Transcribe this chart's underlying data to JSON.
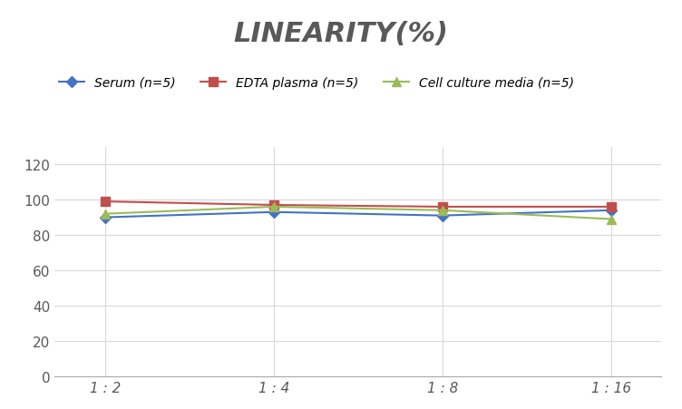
{
  "title": "LINEARITY(%)",
  "title_fontsize": 22,
  "title_style": "italic",
  "title_weight": "bold",
  "title_color": "#595959",
  "x_labels": [
    "1 : 2",
    "1 : 4",
    "1 : 8",
    "1 : 16"
  ],
  "x_positions": [
    0,
    1,
    2,
    3
  ],
  "series": [
    {
      "label": "Serum (n=5)",
      "values": [
        90,
        93,
        91,
        94
      ],
      "color": "#4472C4",
      "marker": "D",
      "marker_size": 6,
      "linewidth": 1.5
    },
    {
      "label": "EDTA plasma (n=5)",
      "values": [
        99,
        97,
        96,
        96
      ],
      "color": "#C0504D",
      "marker": "s",
      "marker_size": 7,
      "linewidth": 1.5
    },
    {
      "label": "Cell culture media (n=5)",
      "values": [
        92,
        96,
        94,
        89
      ],
      "color": "#9BBB59",
      "marker": "^",
      "marker_size": 7,
      "linewidth": 1.5
    }
  ],
  "ylim": [
    0,
    130
  ],
  "yticks": [
    0,
    20,
    40,
    60,
    80,
    100,
    120
  ],
  "grid_color": "#D9D9D9",
  "background_color": "#FFFFFF",
  "legend_fontsize": 10,
  "tick_fontsize": 11,
  "tick_color": "#595959",
  "legend_style": "italic"
}
